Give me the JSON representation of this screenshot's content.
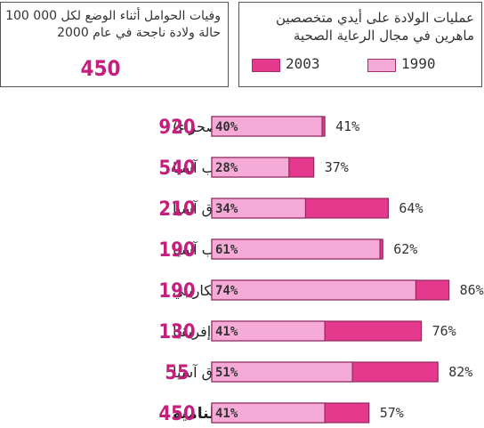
{
  "legend": {
    "line1": "عمليات الولادة على أيدي متخصصين",
    "line2": "ماهرين في مجال الرعاية الصحية",
    "items": [
      {
        "label": "2003",
        "color": "#e4398d"
      },
      {
        "label": "1990",
        "color": "#f6aad7"
      }
    ]
  },
  "deaths_box": {
    "line1": "وفيات الحوامل أثناء الوضع لكل 000 100",
    "line2": "حالة ولادة ناجحة في عام 2000",
    "total": "450"
  },
  "chart_data": {
    "type": "bar",
    "xlim": [
      0,
      100
    ],
    "colors": {
      "1990": "#f6aad7",
      "2003": "#e4398d",
      "border": "#8e2a5f"
    },
    "rows": [
      {
        "region": "إفريقيا (جنوب الصحراء)",
        "deaths": "920",
        "v1990": 40,
        "v2003": 41,
        "label1990": "40%",
        "label2003": "41%"
      },
      {
        "region": "جنوب آسيا",
        "deaths": "540",
        "v1990": 28,
        "v2003": 37,
        "label1990": "28%",
        "label2003": "37%"
      },
      {
        "region": "جنوب شرق آسيا",
        "deaths": "210",
        "v1990": 34,
        "v2003": 64,
        "label1990": "34%",
        "label2003": "64%"
      },
      {
        "region": "غرب آسيا",
        "deaths": "190",
        "v1990": 61,
        "v2003": 62,
        "label1990": "61%",
        "label2003": "62%"
      },
      {
        "region": "أمريكا اللاتينية والكاريبي",
        "deaths": "190",
        "v1990": 74,
        "v2003": 86,
        "label1990": "74%",
        "label2003": "86%"
      },
      {
        "region": "شمال إفريقيا",
        "deaths": "130",
        "v1990": 41,
        "v2003": 76,
        "label1990": "41%",
        "label2003": "76%"
      },
      {
        "region": "شرق آسيا",
        "deaths": "55",
        "v1990": 51,
        "v2003": 82,
        "label1990": "51%",
        "label2003": "82%"
      },
      {
        "region": "جميع الأقاليم النامية",
        "deaths": "450",
        "v1990": 41,
        "v2003": 57,
        "label1990": "41%",
        "label2003": "57%"
      }
    ]
  }
}
